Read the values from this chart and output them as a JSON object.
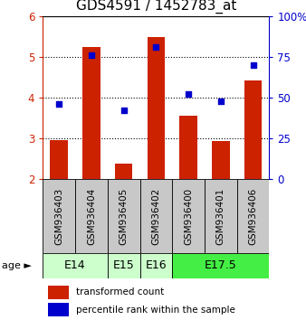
{
  "title": "GDS4591 / 1452783_at",
  "samples": [
    "GSM936403",
    "GSM936404",
    "GSM936405",
    "GSM936402",
    "GSM936400",
    "GSM936401",
    "GSM936406"
  ],
  "bar_values": [
    2.95,
    5.25,
    2.38,
    5.48,
    3.55,
    2.93,
    4.42
  ],
  "scatter_pct": [
    46,
    76,
    42,
    81,
    52,
    48,
    70
  ],
  "bar_bottom": 2.0,
  "ylim_left": [
    2.0,
    6.0
  ],
  "ylim_right": [
    0,
    100
  ],
  "yticks_left": [
    2,
    3,
    4,
    5,
    6
  ],
  "yticks_right": [
    0,
    25,
    50,
    75,
    100
  ],
  "yticklabels_right": [
    "0",
    "25",
    "50",
    "75",
    "100%"
  ],
  "bar_color": "#cc2200",
  "scatter_color": "#0000cc",
  "age_groups": [
    {
      "label": "E14",
      "cols": [
        0,
        1
      ],
      "color": "#ccffcc"
    },
    {
      "label": "E15",
      "cols": [
        2
      ],
      "color": "#ccffcc"
    },
    {
      "label": "E16",
      "cols": [
        3
      ],
      "color": "#ccffcc"
    },
    {
      "label": "E17.5",
      "cols": [
        4,
        5,
        6
      ],
      "color": "#44ee44"
    }
  ],
  "legend_bar_label": "transformed count",
  "legend_scatter_label": "percentile rank within the sample",
  "sample_bg_color": "#c8c8c8",
  "title_fontsize": 11,
  "tick_fontsize": 8.5,
  "label_fontsize": 7.5,
  "age_fontsize": 9
}
